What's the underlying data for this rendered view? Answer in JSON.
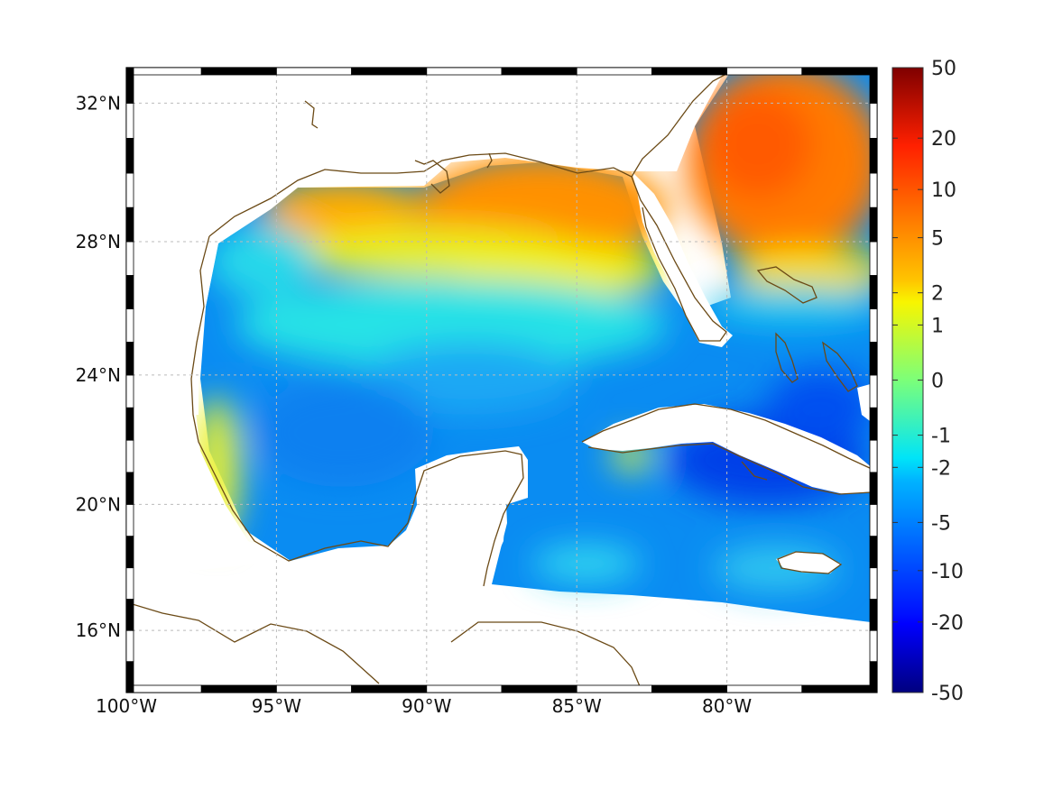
{
  "map": {
    "projection": "mercator",
    "lon_range": [
      -100,
      -75
    ],
    "lat_range": [
      14,
      33
    ],
    "grid": true,
    "coastline_color": "#6b4a16",
    "lon_ticks": [
      {
        "value": -100,
        "label": "100°W"
      },
      {
        "value": -95,
        "label": "95°W"
      },
      {
        "value": -90,
        "label": "90°W"
      },
      {
        "value": -85,
        "label": "85°W"
      },
      {
        "value": -80,
        "label": "80°W"
      }
    ],
    "lat_ticks": [
      {
        "value": 32,
        "label": "32°N"
      },
      {
        "value": 28,
        "label": "28°N"
      },
      {
        "value": 24,
        "label": "24°N"
      },
      {
        "value": 20,
        "label": "20°N"
      },
      {
        "value": 16,
        "label": "16°N"
      }
    ]
  },
  "colorbar": {
    "colormap": "jet",
    "scale": "symlog",
    "labels": [
      "50",
      "20",
      "10",
      "5",
      "2",
      "1",
      "0",
      "-1",
      "-2",
      "-5",
      "-10",
      "-20",
      "-50"
    ]
  }
}
